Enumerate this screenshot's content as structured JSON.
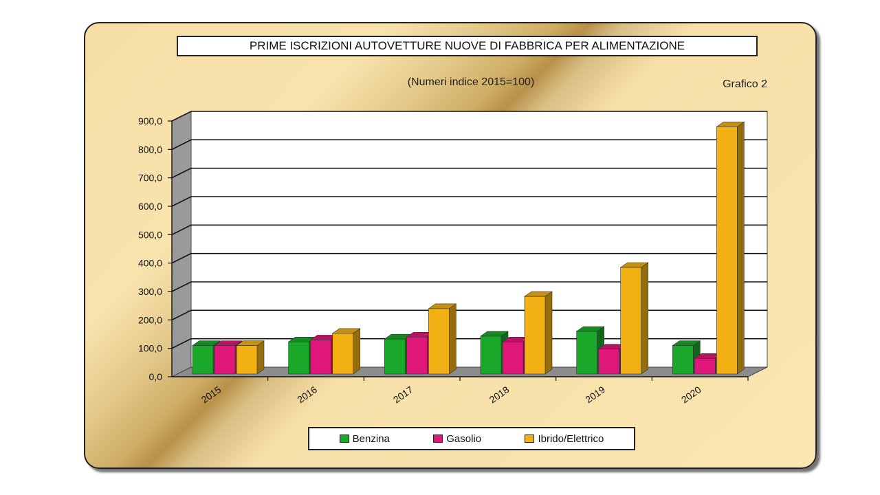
{
  "chart_data": {
    "type": "bar",
    "title": "PRIME ISCRIZIONI AUTOVETTURE NUOVE DI FABBRICA PER ALIMENTAZIONE",
    "subtitle": "(Numeri indice 2015=100)",
    "chart_id": "Grafico 2",
    "categories": [
      "2015",
      "2016",
      "2017",
      "2018",
      "2019",
      "2020"
    ],
    "series": [
      {
        "name": "Benzina",
        "color": "#1aa82a",
        "values": [
          100,
          113,
          123,
          133,
          150,
          100
        ]
      },
      {
        "name": "Gasolio",
        "color": "#e0177a",
        "values": [
          100,
          120,
          130,
          113,
          88,
          55
        ]
      },
      {
        "name": "Ibrido/Elettrico",
        "color": "#f2b014",
        "values": [
          100,
          143,
          230,
          273,
          375,
          870
        ]
      }
    ],
    "ylim": [
      0,
      900
    ],
    "yticks": [
      "0,0",
      "100,0",
      "200,0",
      "300,0",
      "400,0",
      "500,0",
      "600,0",
      "700,0",
      "800,0",
      "900,0"
    ],
    "grid": true,
    "legend_position": "bottom"
  }
}
